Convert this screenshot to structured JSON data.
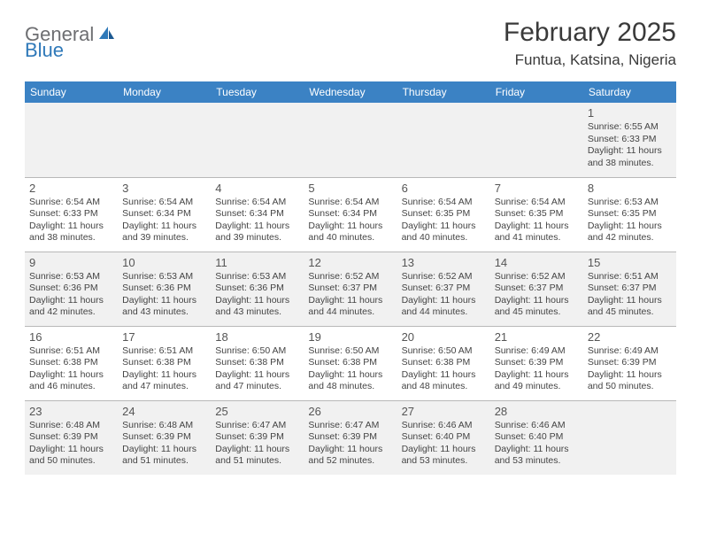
{
  "brand": {
    "text1": "General",
    "text2": "Blue"
  },
  "title": "February 2025",
  "location": "Funtua, Katsina, Nigeria",
  "colors": {
    "header_bg": "#3b82c4",
    "header_fg": "#ffffff",
    "alt_row_bg": "#f1f1f1",
    "border": "#b8b8b8",
    "title_color": "#3a3a3a",
    "logo_gray": "#6d6e71",
    "logo_blue": "#2f79b9"
  },
  "day_headers": [
    "Sunday",
    "Monday",
    "Tuesday",
    "Wednesday",
    "Thursday",
    "Friday",
    "Saturday"
  ],
  "weeks": [
    [
      {
        "n": "",
        "sr": "",
        "ss": "",
        "dl": ""
      },
      {
        "n": "",
        "sr": "",
        "ss": "",
        "dl": ""
      },
      {
        "n": "",
        "sr": "",
        "ss": "",
        "dl": ""
      },
      {
        "n": "",
        "sr": "",
        "ss": "",
        "dl": ""
      },
      {
        "n": "",
        "sr": "",
        "ss": "",
        "dl": ""
      },
      {
        "n": "",
        "sr": "",
        "ss": "",
        "dl": ""
      },
      {
        "n": "1",
        "sr": "Sunrise: 6:55 AM",
        "ss": "Sunset: 6:33 PM",
        "dl": "Daylight: 11 hours and 38 minutes."
      }
    ],
    [
      {
        "n": "2",
        "sr": "Sunrise: 6:54 AM",
        "ss": "Sunset: 6:33 PM",
        "dl": "Daylight: 11 hours and 38 minutes."
      },
      {
        "n": "3",
        "sr": "Sunrise: 6:54 AM",
        "ss": "Sunset: 6:34 PM",
        "dl": "Daylight: 11 hours and 39 minutes."
      },
      {
        "n": "4",
        "sr": "Sunrise: 6:54 AM",
        "ss": "Sunset: 6:34 PM",
        "dl": "Daylight: 11 hours and 39 minutes."
      },
      {
        "n": "5",
        "sr": "Sunrise: 6:54 AM",
        "ss": "Sunset: 6:34 PM",
        "dl": "Daylight: 11 hours and 40 minutes."
      },
      {
        "n": "6",
        "sr": "Sunrise: 6:54 AM",
        "ss": "Sunset: 6:35 PM",
        "dl": "Daylight: 11 hours and 40 minutes."
      },
      {
        "n": "7",
        "sr": "Sunrise: 6:54 AM",
        "ss": "Sunset: 6:35 PM",
        "dl": "Daylight: 11 hours and 41 minutes."
      },
      {
        "n": "8",
        "sr": "Sunrise: 6:53 AM",
        "ss": "Sunset: 6:35 PM",
        "dl": "Daylight: 11 hours and 42 minutes."
      }
    ],
    [
      {
        "n": "9",
        "sr": "Sunrise: 6:53 AM",
        "ss": "Sunset: 6:36 PM",
        "dl": "Daylight: 11 hours and 42 minutes."
      },
      {
        "n": "10",
        "sr": "Sunrise: 6:53 AM",
        "ss": "Sunset: 6:36 PM",
        "dl": "Daylight: 11 hours and 43 minutes."
      },
      {
        "n": "11",
        "sr": "Sunrise: 6:53 AM",
        "ss": "Sunset: 6:36 PM",
        "dl": "Daylight: 11 hours and 43 minutes."
      },
      {
        "n": "12",
        "sr": "Sunrise: 6:52 AM",
        "ss": "Sunset: 6:37 PM",
        "dl": "Daylight: 11 hours and 44 minutes."
      },
      {
        "n": "13",
        "sr": "Sunrise: 6:52 AM",
        "ss": "Sunset: 6:37 PM",
        "dl": "Daylight: 11 hours and 44 minutes."
      },
      {
        "n": "14",
        "sr": "Sunrise: 6:52 AM",
        "ss": "Sunset: 6:37 PM",
        "dl": "Daylight: 11 hours and 45 minutes."
      },
      {
        "n": "15",
        "sr": "Sunrise: 6:51 AM",
        "ss": "Sunset: 6:37 PM",
        "dl": "Daylight: 11 hours and 45 minutes."
      }
    ],
    [
      {
        "n": "16",
        "sr": "Sunrise: 6:51 AM",
        "ss": "Sunset: 6:38 PM",
        "dl": "Daylight: 11 hours and 46 minutes."
      },
      {
        "n": "17",
        "sr": "Sunrise: 6:51 AM",
        "ss": "Sunset: 6:38 PM",
        "dl": "Daylight: 11 hours and 47 minutes."
      },
      {
        "n": "18",
        "sr": "Sunrise: 6:50 AM",
        "ss": "Sunset: 6:38 PM",
        "dl": "Daylight: 11 hours and 47 minutes."
      },
      {
        "n": "19",
        "sr": "Sunrise: 6:50 AM",
        "ss": "Sunset: 6:38 PM",
        "dl": "Daylight: 11 hours and 48 minutes."
      },
      {
        "n": "20",
        "sr": "Sunrise: 6:50 AM",
        "ss": "Sunset: 6:38 PM",
        "dl": "Daylight: 11 hours and 48 minutes."
      },
      {
        "n": "21",
        "sr": "Sunrise: 6:49 AM",
        "ss": "Sunset: 6:39 PM",
        "dl": "Daylight: 11 hours and 49 minutes."
      },
      {
        "n": "22",
        "sr": "Sunrise: 6:49 AM",
        "ss": "Sunset: 6:39 PM",
        "dl": "Daylight: 11 hours and 50 minutes."
      }
    ],
    [
      {
        "n": "23",
        "sr": "Sunrise: 6:48 AM",
        "ss": "Sunset: 6:39 PM",
        "dl": "Daylight: 11 hours and 50 minutes."
      },
      {
        "n": "24",
        "sr": "Sunrise: 6:48 AM",
        "ss": "Sunset: 6:39 PM",
        "dl": "Daylight: 11 hours and 51 minutes."
      },
      {
        "n": "25",
        "sr": "Sunrise: 6:47 AM",
        "ss": "Sunset: 6:39 PM",
        "dl": "Daylight: 11 hours and 51 minutes."
      },
      {
        "n": "26",
        "sr": "Sunrise: 6:47 AM",
        "ss": "Sunset: 6:39 PM",
        "dl": "Daylight: 11 hours and 52 minutes."
      },
      {
        "n": "27",
        "sr": "Sunrise: 6:46 AM",
        "ss": "Sunset: 6:40 PM",
        "dl": "Daylight: 11 hours and 53 minutes."
      },
      {
        "n": "28",
        "sr": "Sunrise: 6:46 AM",
        "ss": "Sunset: 6:40 PM",
        "dl": "Daylight: 11 hours and 53 minutes."
      },
      {
        "n": "",
        "sr": "",
        "ss": "",
        "dl": ""
      }
    ]
  ]
}
